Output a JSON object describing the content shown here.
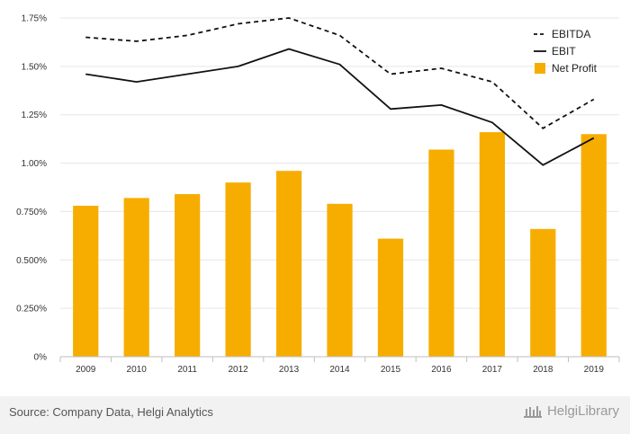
{
  "chart_data": {
    "type": "bar",
    "categories": [
      "2009",
      "2010",
      "2011",
      "2012",
      "2013",
      "2014",
      "2015",
      "2016",
      "2017",
      "2018",
      "2019"
    ],
    "ylim": [
      0,
      1.75
    ],
    "yticks": [
      "0%",
      "0.250%",
      "0.500%",
      "0.750%",
      "1.00%",
      "1.25%",
      "1.50%",
      "1.75%"
    ],
    "ytick_values": [
      0,
      0.25,
      0.5,
      0.75,
      1.0,
      1.25,
      1.5,
      1.75
    ],
    "grid": true,
    "legend_position": "top-right",
    "series": [
      {
        "name": "EBITDA",
        "kind": "line",
        "style": "dashed",
        "color": "#111111",
        "values": [
          1.65,
          1.63,
          1.66,
          1.72,
          1.75,
          1.66,
          1.46,
          1.49,
          1.42,
          1.18,
          1.33
        ]
      },
      {
        "name": "EBIT",
        "kind": "line",
        "style": "solid",
        "color": "#111111",
        "values": [
          1.46,
          1.42,
          1.46,
          1.5,
          1.59,
          1.51,
          1.28,
          1.3,
          1.21,
          0.99,
          1.13
        ]
      },
      {
        "name": "Net Profit",
        "kind": "bar",
        "color": "#F7AD00",
        "values": [
          0.78,
          0.82,
          0.84,
          0.9,
          0.96,
          0.79,
          0.61,
          1.07,
          1.16,
          0.66,
          1.15
        ]
      }
    ]
  },
  "footer": {
    "source": "Source: Company Data, Helgi Analytics",
    "brand": "HelgiLibrary",
    "brand_icon": "library-building-icon",
    "background": "#F2F2F2"
  }
}
